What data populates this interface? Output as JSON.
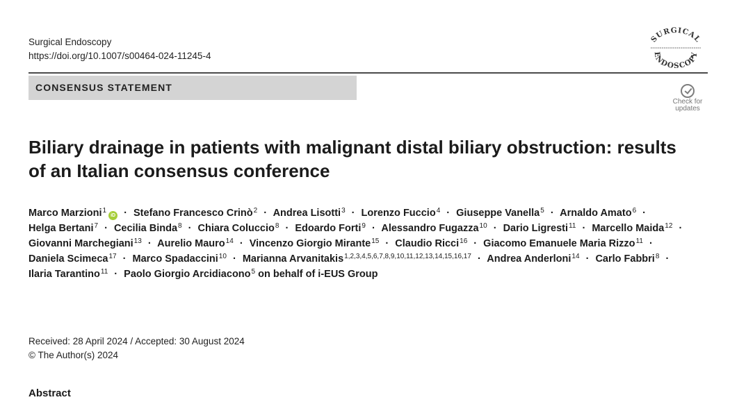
{
  "journal": {
    "name": "Surgical Endoscopy",
    "doi": "https://doi.org/10.1007/s00464-024-11245-4",
    "logo_text_top": "SURGICAL",
    "logo_text_bottom": "ENDOSCOPY"
  },
  "banner": {
    "label": "CONSENSUS STATEMENT"
  },
  "check_updates": {
    "label": "Check for\nupdates",
    "icon": "check-circle-icon"
  },
  "title": "Biliary drainage in patients with malignant distal biliary obstruction: results of an Italian consensus conference",
  "authors": [
    {
      "name": "Marco Marzioni",
      "aff": "1",
      "orcid": true
    },
    {
      "name": "Stefano Francesco Crinò",
      "aff": "2"
    },
    {
      "name": "Andrea Lisotti",
      "aff": "3"
    },
    {
      "name": "Lorenzo Fuccio",
      "aff": "4"
    },
    {
      "name": "Giuseppe Vanella",
      "aff": "5"
    },
    {
      "name": "Arnaldo Amato",
      "aff": "6"
    },
    {
      "name": "Helga Bertani",
      "aff": "7"
    },
    {
      "name": "Cecilia Binda",
      "aff": "8"
    },
    {
      "name": "Chiara Coluccio",
      "aff": "8"
    },
    {
      "name": "Edoardo Forti",
      "aff": "9"
    },
    {
      "name": "Alessandro Fugazza",
      "aff": "10"
    },
    {
      "name": "Dario Ligresti",
      "aff": "11"
    },
    {
      "name": "Marcello Maida",
      "aff": "12"
    },
    {
      "name": "Giovanni Marchegiani",
      "aff": "13"
    },
    {
      "name": "Aurelio Mauro",
      "aff": "14"
    },
    {
      "name": "Vincenzo Giorgio Mirante",
      "aff": "15"
    },
    {
      "name": "Claudio Ricci",
      "aff": "16"
    },
    {
      "name": "Giacomo Emanuele Maria Rizzo",
      "aff": "11"
    },
    {
      "name": "Daniela Scimeca",
      "aff": "17"
    },
    {
      "name": "Marco Spadaccini",
      "aff": "10"
    },
    {
      "name": "Marianna Arvanitakis",
      "aff": "1,2,3,4,5,6,7,8,9,10,11,12,13,14,15,16,17"
    },
    {
      "name": "Andrea Anderloni",
      "aff": "14"
    },
    {
      "name": "Carlo Fabbri",
      "aff": "8"
    },
    {
      "name": "Ilaria Tarantino",
      "aff": "11"
    },
    {
      "name": "Paolo Giorgio Arcidiacono",
      "aff": "5"
    }
  ],
  "author_separator": "·",
  "group_suffix": "on behalf of i-EUS Group",
  "orcid_label": "iD",
  "dates": {
    "received_accepted": "Received: 28 April 2024 / Accepted: 30 August 2024",
    "copyright": "© The Author(s) 2024"
  },
  "abstract_heading": "Abstract"
}
